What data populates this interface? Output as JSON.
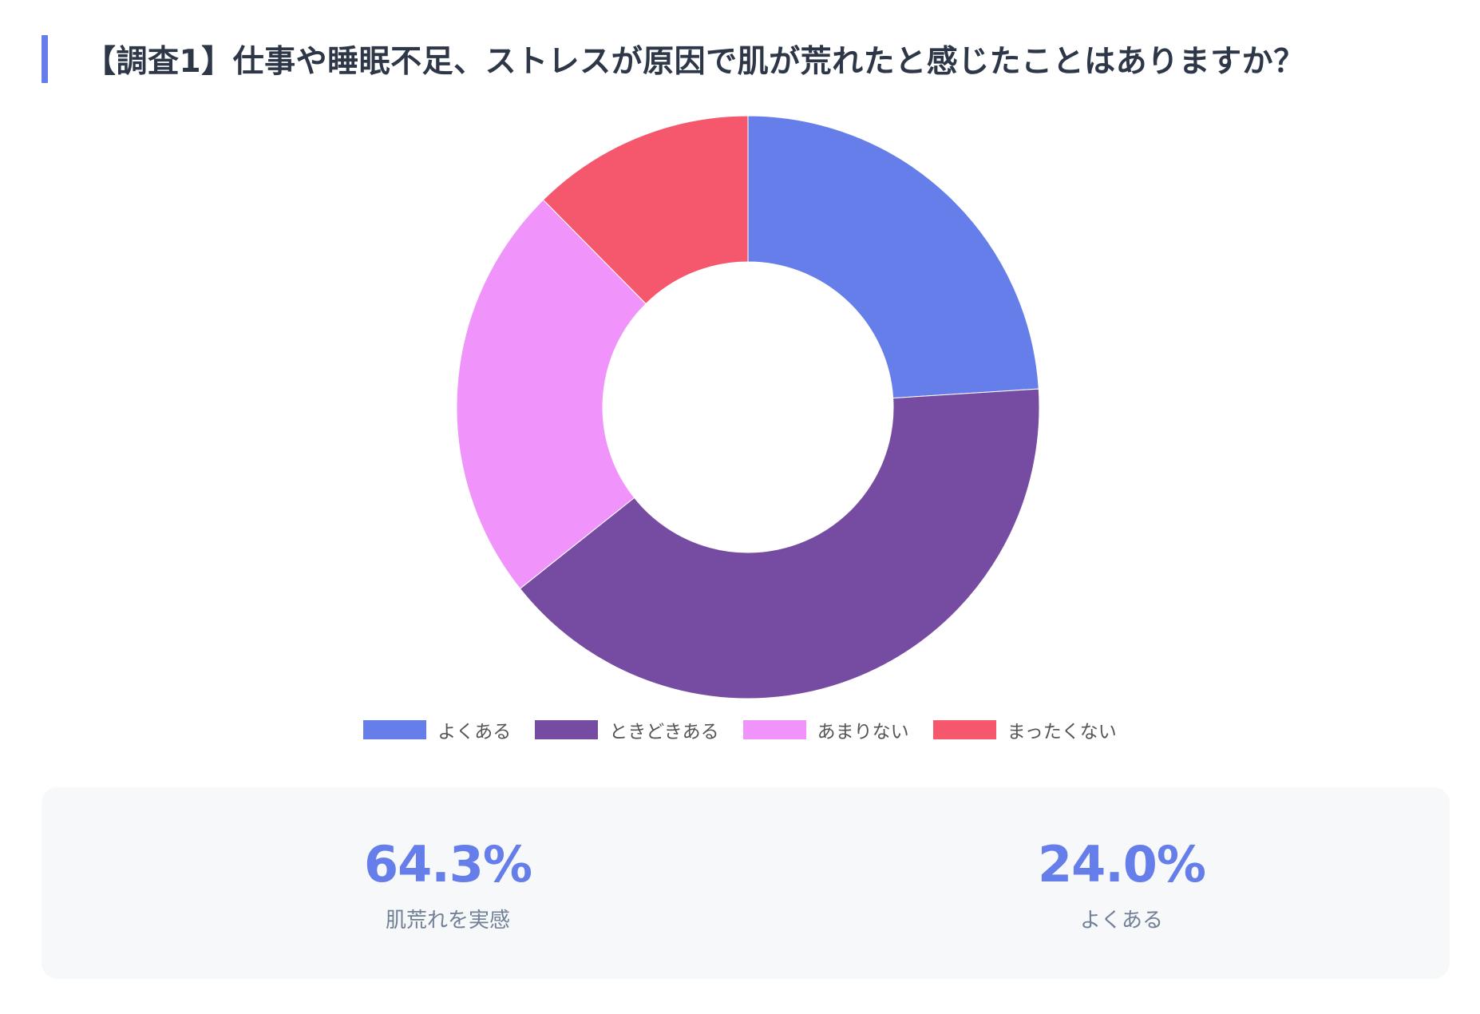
{
  "title": "【調査1】仕事や睡眠不足、ストレスが原因で肌が荒れたと感じたことはありますか？",
  "chart_data": {
    "type": "pie",
    "variant": "donut",
    "categories": [
      "よくある",
      "ときどきある",
      "あまりない",
      "まったくない"
    ],
    "values": [
      24.0,
      40.3,
      23.3,
      12.4
    ],
    "colors": [
      "#667eea",
      "#764ba2",
      "#f093fb",
      "#f5576c"
    ],
    "legend_position": "bottom"
  },
  "stats": [
    {
      "value": "64.3%",
      "label": "肌荒れを実感"
    },
    {
      "value": "24.0%",
      "label": "よくある"
    }
  ]
}
